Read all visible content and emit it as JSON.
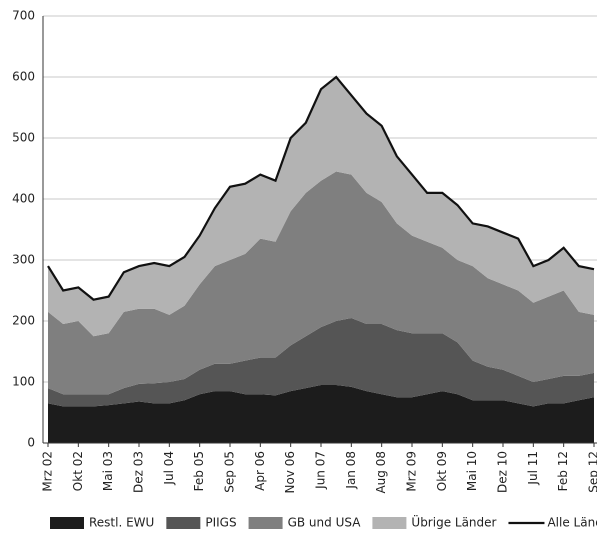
{
  "chart_data": {
    "type": "area",
    "categories": [
      "Mrz 02",
      null,
      "Okt 02",
      null,
      "Mai 03",
      null,
      "Dez 03",
      null,
      "Jul 04",
      null,
      "Feb 05",
      null,
      "Sep 05",
      null,
      "Apr 06",
      null,
      "Nov 06",
      null,
      "Jun 07",
      null,
      "Jan 08",
      null,
      "Aug 08",
      null,
      "Mrz 09",
      null,
      "Okt 09",
      null,
      "Mai 10",
      null,
      "Dez 10",
      null,
      "Jul 11",
      null,
      "Feb 12",
      null,
      "Sep 12"
    ],
    "series": [
      {
        "name": "Restl. EWU",
        "color": "#1c1c1c",
        "values": [
          65,
          60,
          60,
          60,
          62,
          65,
          68,
          65,
          65,
          70,
          80,
          85,
          85,
          80,
          80,
          78,
          85,
          90,
          95,
          95,
          92,
          85,
          80,
          75,
          75,
          80,
          85,
          80,
          70,
          70,
          70,
          65,
          60,
          65,
          65,
          70,
          75
        ]
      },
      {
        "name": "PIIGS",
        "color": "#555555",
        "values": [
          25,
          20,
          20,
          20,
          18,
          25,
          29,
          33,
          35,
          35,
          40,
          45,
          45,
          55,
          60,
          62,
          75,
          85,
          95,
          105,
          113,
          110,
          115,
          110,
          105,
          100,
          95,
          85,
          65,
          55,
          50,
          45,
          40,
          40,
          45,
          40,
          40
        ]
      },
      {
        "name": "GB und USA",
        "color": "#7f7f7f",
        "values": [
          125,
          115,
          120,
          95,
          100,
          125,
          123,
          122,
          110,
          120,
          140,
          160,
          170,
          175,
          195,
          190,
          220,
          235,
          240,
          245,
          235,
          215,
          200,
          175,
          160,
          150,
          140,
          135,
          155,
          145,
          140,
          140,
          130,
          135,
          140,
          105,
          95
        ]
      },
      {
        "name": "Übrige Länder",
        "color": "#b3b3b3",
        "values": [
          75,
          55,
          55,
          60,
          60,
          65,
          70,
          75,
          80,
          80,
          80,
          95,
          120,
          115,
          105,
          100,
          120,
          115,
          150,
          155,
          130,
          130,
          125,
          110,
          100,
          80,
          90,
          90,
          70,
          85,
          85,
          85,
          60,
          60,
          70,
          75,
          75
        ]
      },
      {
        "name": "Alle Länder",
        "type": "line",
        "color": "#111111",
        "values": [
          290,
          250,
          255,
          235,
          240,
          280,
          290,
          295,
          290,
          305,
          340,
          385,
          420,
          425,
          440,
          430,
          500,
          525,
          580,
          600,
          570,
          540,
          520,
          470,
          440,
          410,
          410,
          390,
          360,
          355,
          345,
          335,
          290,
          300,
          320,
          290,
          285
        ]
      }
    ],
    "ylim": [
      0,
      700
    ],
    "yticks": [
      0,
      100,
      200,
      300,
      400,
      500,
      600,
      700
    ],
    "grid": true
  }
}
